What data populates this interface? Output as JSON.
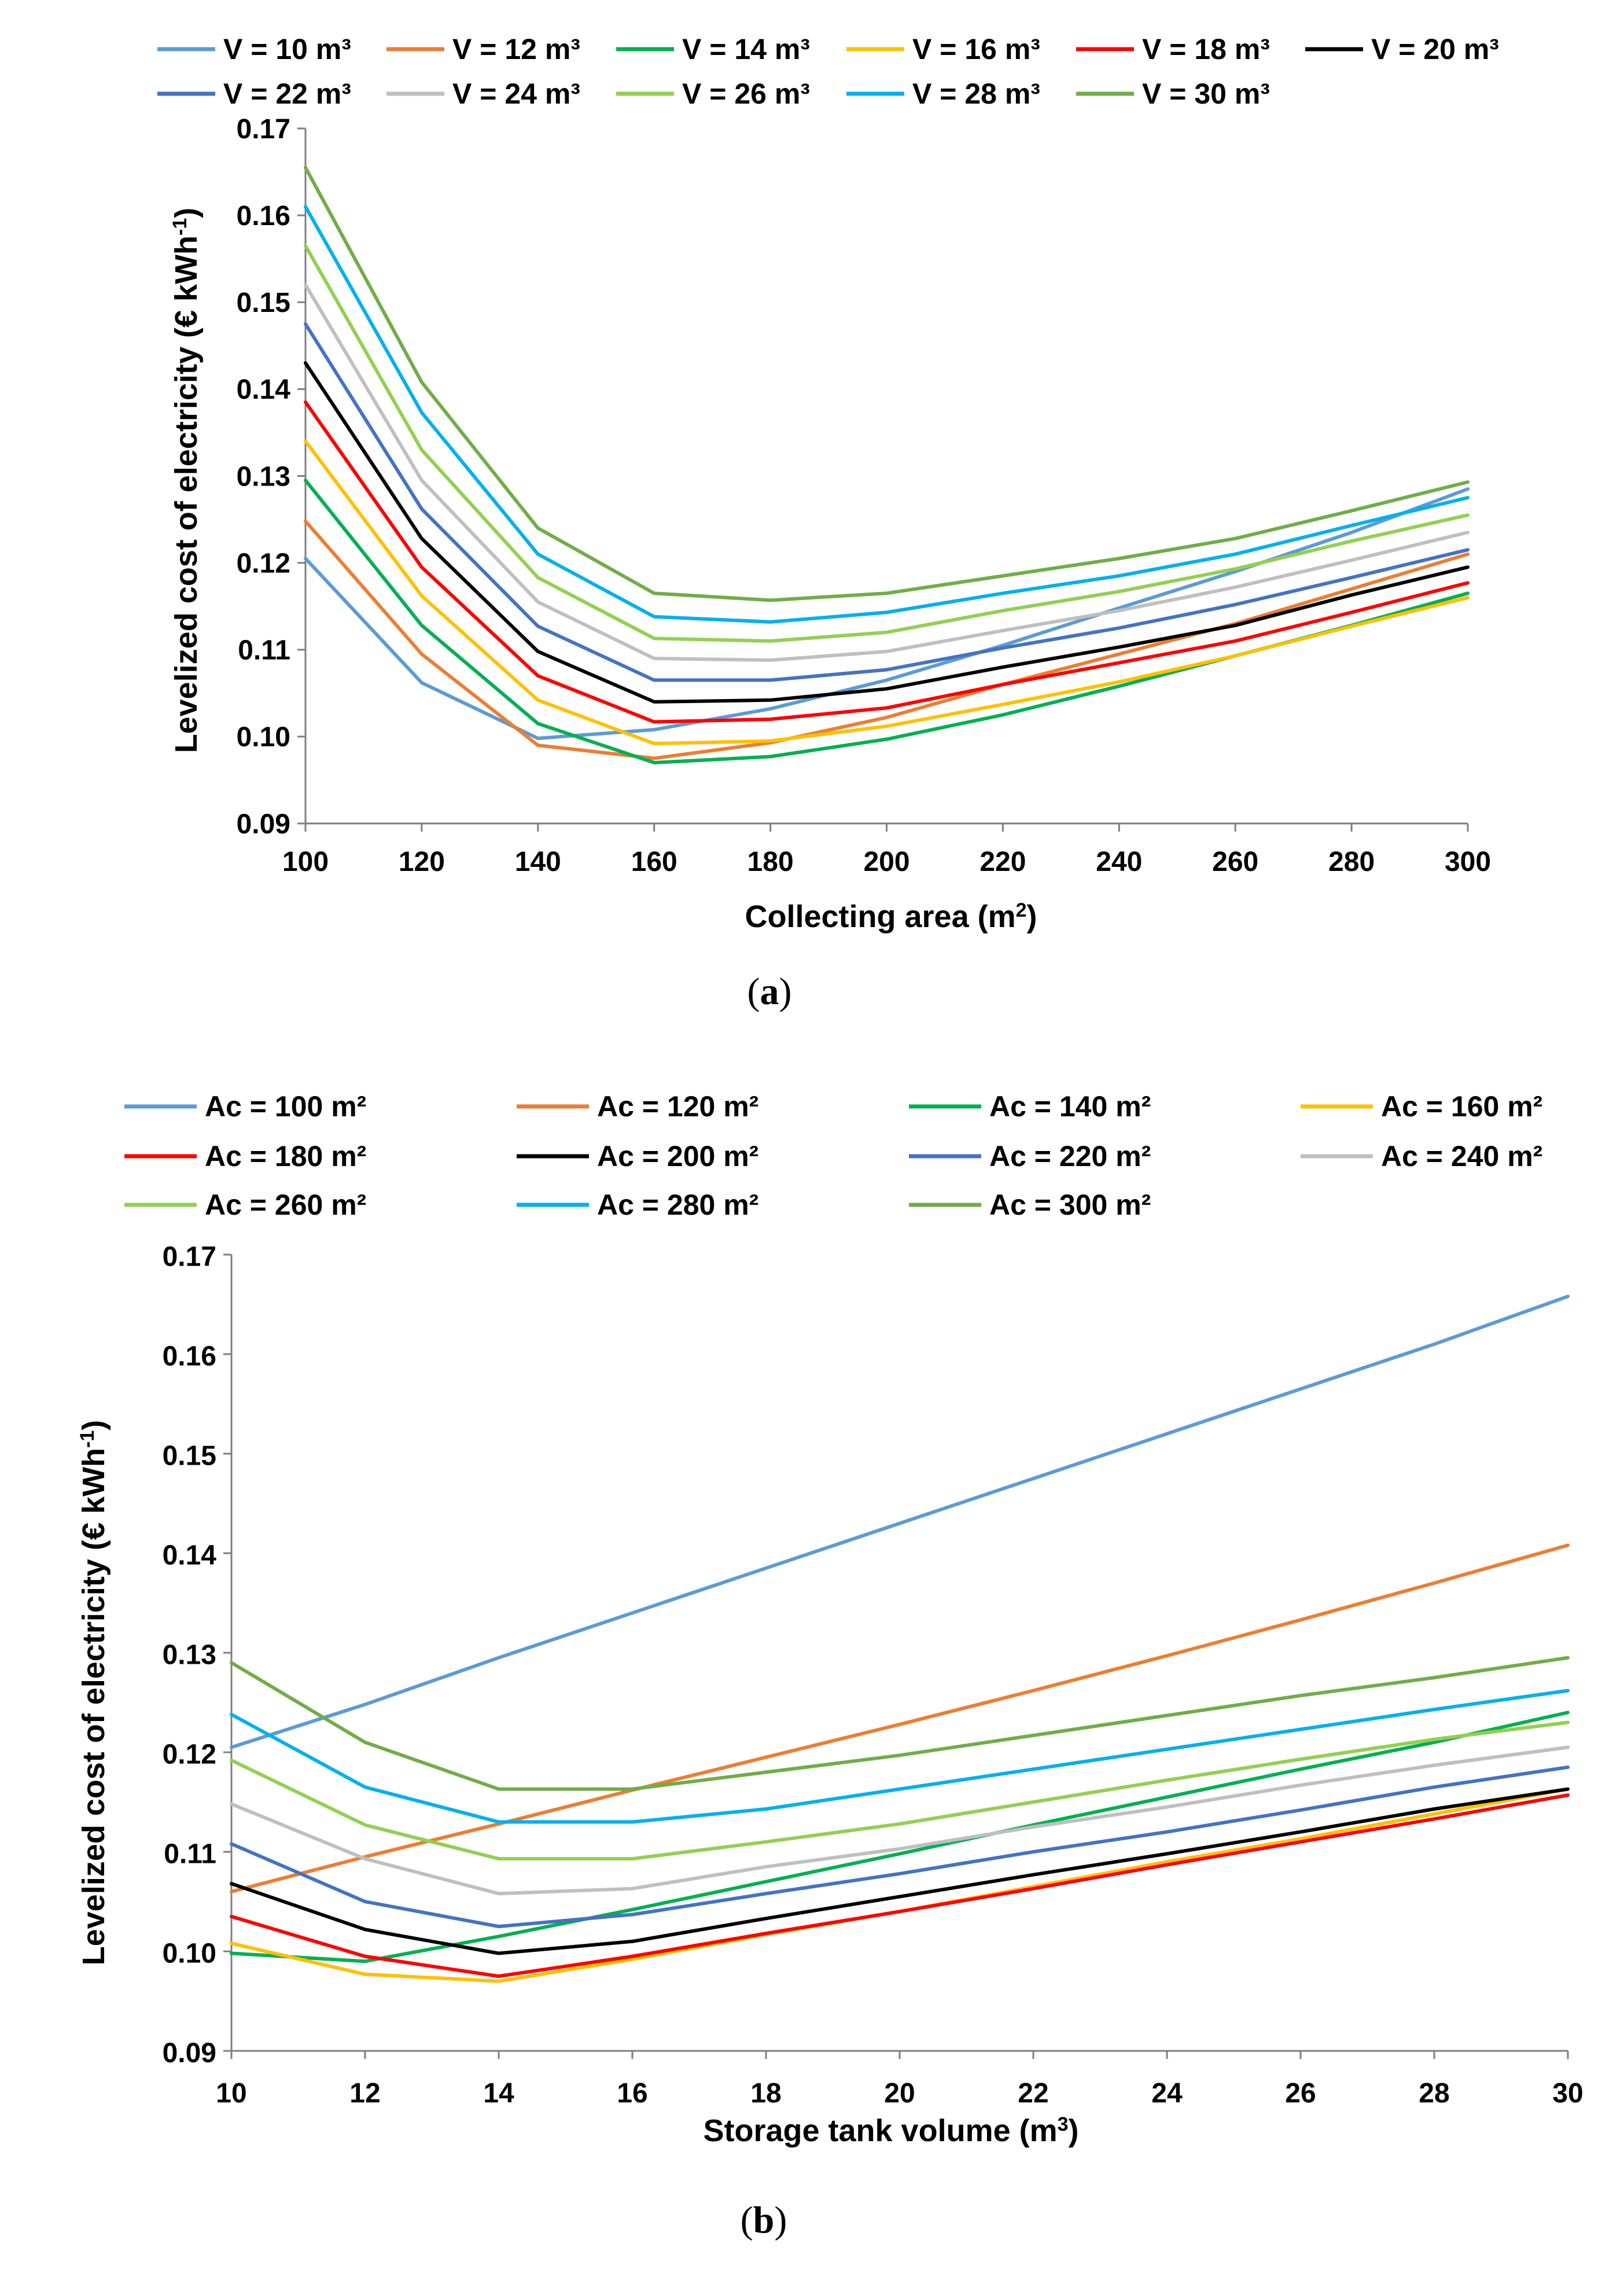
{
  "chart_data": [
    {
      "type": "line",
      "caption": "(a)",
      "xlabel": "Collecting area (m²)",
      "ylabel": "Levelized cost of electricity (€ kWh⁻¹)",
      "x": [
        100,
        120,
        140,
        160,
        180,
        200,
        220,
        240,
        260,
        280,
        300
      ],
      "xlim": [
        100,
        300
      ],
      "ylim": [
        0.09,
        0.17
      ],
      "xticks": [
        "100",
        "120",
        "140",
        "160",
        "180",
        "200",
        "220",
        "240",
        "260",
        "280",
        "300"
      ],
      "yticks": [
        "0.09",
        "0.10",
        "0.11",
        "0.12",
        "0.13",
        "0.14",
        "0.15",
        "0.16",
        "0.17"
      ],
      "legend_position": "top",
      "series": [
        {
          "name": "V = 10 m³",
          "color": "#5B9BD5",
          "values": [
            0.1205,
            0.1062,
            0.0998,
            0.1008,
            0.1032,
            0.1065,
            0.1105,
            0.1148,
            0.119,
            0.1235,
            0.1285
          ]
        },
        {
          "name": "V = 12 m³",
          "color": "#ED7D31",
          "values": [
            0.1248,
            0.1095,
            0.099,
            0.0975,
            0.0993,
            0.1022,
            0.106,
            0.1095,
            0.113,
            0.117,
            0.121
          ]
        },
        {
          "name": "V = 14 m³",
          "color": "#00B050",
          "values": [
            0.1295,
            0.1128,
            0.1015,
            0.097,
            0.0977,
            0.0997,
            0.1025,
            0.1058,
            0.1093,
            0.1128,
            0.1165
          ]
        },
        {
          "name": "V = 16 m³",
          "color": "#FFC000",
          "values": [
            0.134,
            0.1162,
            0.1042,
            0.0992,
            0.0995,
            0.1012,
            0.1037,
            0.1063,
            0.1093,
            0.1127,
            0.116
          ]
        },
        {
          "name": "V = 18 m³",
          "color": "#FF0000",
          "values": [
            0.1385,
            0.1195,
            0.107,
            0.1017,
            0.102,
            0.1033,
            0.106,
            0.1085,
            0.111,
            0.1143,
            0.1177
          ]
        },
        {
          "name": "V = 20 m³",
          "color": "#000000",
          "values": [
            0.143,
            0.1228,
            0.1098,
            0.104,
            0.1042,
            0.1055,
            0.108,
            0.1103,
            0.1128,
            0.1163,
            0.1195
          ]
        },
        {
          "name": "V = 22 m³",
          "color": "#4472C4",
          "values": [
            0.1475,
            0.1262,
            0.1127,
            0.1065,
            0.1065,
            0.1077,
            0.1102,
            0.1125,
            0.1152,
            0.1183,
            0.1215
          ]
        },
        {
          "name": "V = 24 m³",
          "color": "#BFBFBF",
          "values": [
            0.152,
            0.1295,
            0.1155,
            0.109,
            0.1088,
            0.1098,
            0.1122,
            0.1145,
            0.1172,
            0.1203,
            0.1235
          ]
        },
        {
          "name": "V = 26 m³",
          "color": "#92D050",
          "values": [
            0.1565,
            0.133,
            0.1183,
            0.1113,
            0.111,
            0.112,
            0.1145,
            0.1167,
            0.1193,
            0.1225,
            0.1255
          ]
        },
        {
          "name": "V = 28 m³",
          "color": "#00B0F0",
          "values": [
            0.161,
            0.1373,
            0.121,
            0.1138,
            0.1132,
            0.1143,
            0.1165,
            0.1185,
            0.121,
            0.1243,
            0.1275
          ]
        },
        {
          "name": "V = 30 m³",
          "color": "#70AD47",
          "values": [
            0.1655,
            0.1408,
            0.124,
            0.1165,
            0.1157,
            0.1165,
            0.1185,
            0.1205,
            0.1228,
            0.126,
            0.1293
          ]
        }
      ]
    },
    {
      "type": "line",
      "caption": "(b)",
      "xlabel": "Storage tank volume (m³)",
      "ylabel": "Levelized cost of electricity (€ kWh⁻¹)",
      "x": [
        10,
        12,
        14,
        16,
        18,
        20,
        22,
        24,
        26,
        28,
        30
      ],
      "xlim": [
        10,
        30
      ],
      "ylim": [
        0.09,
        0.17
      ],
      "xticks": [
        "10",
        "12",
        "14",
        "16",
        "18",
        "20",
        "22",
        "24",
        "26",
        "28",
        "30"
      ],
      "yticks": [
        "0.09",
        "0.10",
        "0.11",
        "0.12",
        "0.13",
        "0.14",
        "0.15",
        "0.16",
        "0.17"
      ],
      "legend_position": "top",
      "series": [
        {
          "name": "Ac = 100 m²",
          "color": "#5B9BD5",
          "values": [
            0.1205,
            0.1248,
            0.1295,
            0.134,
            0.1385,
            0.143,
            0.1475,
            0.152,
            0.1565,
            0.161,
            0.1658
          ]
        },
        {
          "name": "Ac = 120 m²",
          "color": "#ED7D31",
          "values": [
            0.106,
            0.1095,
            0.1128,
            0.1162,
            0.1195,
            0.1228,
            0.1262,
            0.1297,
            0.1333,
            0.137,
            0.1408
          ]
        },
        {
          "name": "Ac = 140 m²",
          "color": "#00B050",
          "values": [
            0.0998,
            0.099,
            0.1015,
            0.1042,
            0.107,
            0.1098,
            0.1127,
            0.1155,
            0.1183,
            0.121,
            0.124
          ]
        },
        {
          "name": "Ac = 160 m²",
          "color": "#FFC000",
          "values": [
            0.1008,
            0.0977,
            0.097,
            0.0992,
            0.1017,
            0.104,
            0.1065,
            0.109,
            0.1113,
            0.1138,
            0.1163
          ]
        },
        {
          "name": "Ac = 180 m²",
          "color": "#FF0000",
          "values": [
            0.1035,
            0.0995,
            0.0975,
            0.0995,
            0.1018,
            0.104,
            0.1063,
            0.1087,
            0.111,
            0.1133,
            0.1157
          ]
        },
        {
          "name": "Ac = 200 m²",
          "color": "#000000",
          "values": [
            0.1068,
            0.1022,
            0.0998,
            0.101,
            0.1033,
            0.1055,
            0.1077,
            0.1098,
            0.112,
            0.1143,
            0.1163
          ]
        },
        {
          "name": "Ac = 220 m²",
          "color": "#4472C4",
          "values": [
            0.1108,
            0.105,
            0.1025,
            0.1037,
            0.1058,
            0.1078,
            0.11,
            0.112,
            0.1142,
            0.1165,
            0.1185
          ]
        },
        {
          "name": "Ac = 240 m²",
          "color": "#BFBFBF",
          "values": [
            0.1148,
            0.1093,
            0.1058,
            0.1063,
            0.1085,
            0.1103,
            0.1125,
            0.1145,
            0.1167,
            0.1187,
            0.1205
          ]
        },
        {
          "name": "Ac = 260 m²",
          "color": "#92D050",
          "values": [
            0.1192,
            0.1127,
            0.1093,
            0.1093,
            0.111,
            0.1128,
            0.115,
            0.1172,
            0.1193,
            0.1213,
            0.123
          ]
        },
        {
          "name": "Ac = 280 m²",
          "color": "#00B0F0",
          "values": [
            0.1238,
            0.1165,
            0.113,
            0.113,
            0.1143,
            0.1163,
            0.1183,
            0.1203,
            0.1223,
            0.1243,
            0.1262
          ]
        },
        {
          "name": "Ac = 300 m²",
          "color": "#70AD47",
          "values": [
            0.129,
            0.121,
            0.1163,
            0.1163,
            0.118,
            0.1197,
            0.1217,
            0.1237,
            0.1257,
            0.1275,
            0.1295
          ]
        }
      ]
    }
  ]
}
